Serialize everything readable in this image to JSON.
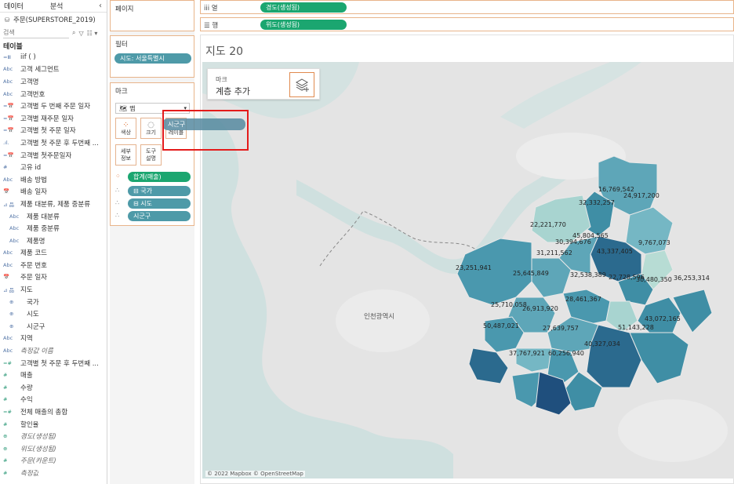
{
  "left_pane": {
    "tabs": [
      "데이터",
      "분석"
    ],
    "collapse_icon": "chevron-left-icon",
    "datasource": "주문(SUPERSTORE_2019)",
    "search_placeholder": "검색",
    "tables_heading": "테이블",
    "fields": [
      {
        "type": "=Ⅲ",
        "label": "iif ( )",
        "kind": "dimension"
      },
      {
        "type": "Abc",
        "label": "고객 세그먼트",
        "kind": "dimension"
      },
      {
        "type": "Abc",
        "label": "고객명",
        "kind": "dimension"
      },
      {
        "type": "Abc",
        "label": "고객번호",
        "kind": "dimension"
      },
      {
        "type": "=📅",
        "label": "고객별 두 번째 주문 일자",
        "kind": "dimension"
      },
      {
        "type": "=📅",
        "label": "고객별 재주문 일자",
        "kind": "dimension"
      },
      {
        "type": "=📅",
        "label": "고객별 첫 주문 일자",
        "kind": "dimension"
      },
      {
        "type": ".ıl.",
        "label": "고객별 첫 주문 후 두번째 ...",
        "kind": "dimension"
      },
      {
        "type": "=📅",
        "label": "고객별 첫주문일자",
        "kind": "dimension"
      },
      {
        "type": "#",
        "label": "고유 id",
        "kind": "dimension"
      },
      {
        "type": "Abc",
        "label": "배송 방법",
        "kind": "dimension"
      },
      {
        "type": "📅",
        "label": "배송 일자",
        "kind": "dimension"
      },
      {
        "type": "⊿ 品",
        "label": "제품 대분류, 제품 중분류",
        "kind": "dimension"
      },
      {
        "type": "Abc",
        "label": "제품 대분류",
        "kind": "dimension",
        "indent": true
      },
      {
        "type": "Abc",
        "label": "제품 중분류",
        "kind": "dimension",
        "indent": true
      },
      {
        "type": "Abc",
        "label": "제품명",
        "kind": "dimension",
        "indent": true
      },
      {
        "type": "Abc",
        "label": "제품 코드",
        "kind": "dimension"
      },
      {
        "type": "Abc",
        "label": "주문 번호",
        "kind": "dimension"
      },
      {
        "type": "📅",
        "label": "주문 일자",
        "kind": "dimension"
      },
      {
        "type": "⊿ 品",
        "label": "지도",
        "kind": "dimension"
      },
      {
        "type": "⊕",
        "label": "국가",
        "kind": "dimension",
        "indent": true
      },
      {
        "type": "⊕",
        "label": "시도",
        "kind": "dimension",
        "indent": true
      },
      {
        "type": "⊕",
        "label": "시군구",
        "kind": "dimension",
        "indent": true
      },
      {
        "type": "Abc",
        "label": "지역",
        "kind": "dimension"
      },
      {
        "type": "Abc",
        "label": "측정값 이름",
        "kind": "dimension",
        "italic": true
      },
      {
        "type": "=#",
        "label": "고객별 첫 주문 후 두번째 ...",
        "kind": "measure"
      },
      {
        "type": "#",
        "label": "매출",
        "kind": "measure"
      },
      {
        "type": "#",
        "label": "수량",
        "kind": "measure"
      },
      {
        "type": "#",
        "label": "수익",
        "kind": "measure"
      },
      {
        "type": "=#",
        "label": "전체 매출의 총합",
        "kind": "measure"
      },
      {
        "type": "#",
        "label": "할인율",
        "kind": "measure"
      },
      {
        "type": "⊕",
        "label": "경도(생성됨)",
        "kind": "measure",
        "italic": true
      },
      {
        "type": "⊕",
        "label": "위도(생성됨)",
        "kind": "measure",
        "italic": true
      },
      {
        "type": "#",
        "label": "주문(카운트)",
        "kind": "measure",
        "italic": true
      },
      {
        "type": "#",
        "label": "측정값",
        "kind": "measure",
        "italic": true
      }
    ]
  },
  "shelves": {
    "pages_label": "페이지",
    "filters_label": "필터",
    "filter_pill": "시도: 서울특별시",
    "columns_label": "iii 열",
    "columns_pill": "경도(생성됨)",
    "rows_label": "☰ 행",
    "rows_pill": "위도(생성됨)"
  },
  "marks": {
    "title": "마크",
    "mark_type": "맵",
    "buttons": {
      "color": "색상",
      "size": "크기",
      "label": "레이블",
      "detail": "세부\n정보",
      "tooltip": "도구\n설명"
    },
    "rows": [
      {
        "icon": "color-dots-icon",
        "pill": "합계(매출)",
        "color": "#1ba670"
      },
      {
        "icon": "detail-dots-icon",
        "pill": "⊟ 국가",
        "color": "#4e9aa8"
      },
      {
        "icon": "detail-dots-icon",
        "pill": "⊟ 시도",
        "color": "#4e9aa8"
      },
      {
        "icon": "detail-dots-icon",
        "pill": "시군구",
        "color": "#4e9aa8"
      }
    ]
  },
  "drag": {
    "ghost_label": "시군구"
  },
  "view": {
    "sheet_title": "지도 20",
    "layer_small": "마크",
    "layer_big": "계층 추가",
    "layer_icon": "layers-add-icon",
    "attribution": "© 2022 Mapbox © OpenStreetMap",
    "place_label": "인천광역시",
    "region_labels": [
      "16,769,542",
      "24,917,200",
      "32,332,257",
      "22,221,770",
      "45,804,565",
      "30,394,676",
      "9,767,073",
      "43,337,405",
      "31,211,562",
      "23,251,941",
      "25,645,849",
      "32,538,389",
      "22,728,596",
      "30,480,350",
      "36,253,314",
      "28,461,367",
      "25,710,058",
      "26,913,920",
      "43,072,165",
      "50,487,021",
      "51,143,228",
      "27,639,757",
      "40,327,034",
      "37,767,921",
      "60,256,940"
    ]
  },
  "colors": {
    "accent_orange": "#e8b48a",
    "pill_blue": "#4e9aa8",
    "pill_green": "#1ba670",
    "highlight_red": "#e41b1b"
  }
}
